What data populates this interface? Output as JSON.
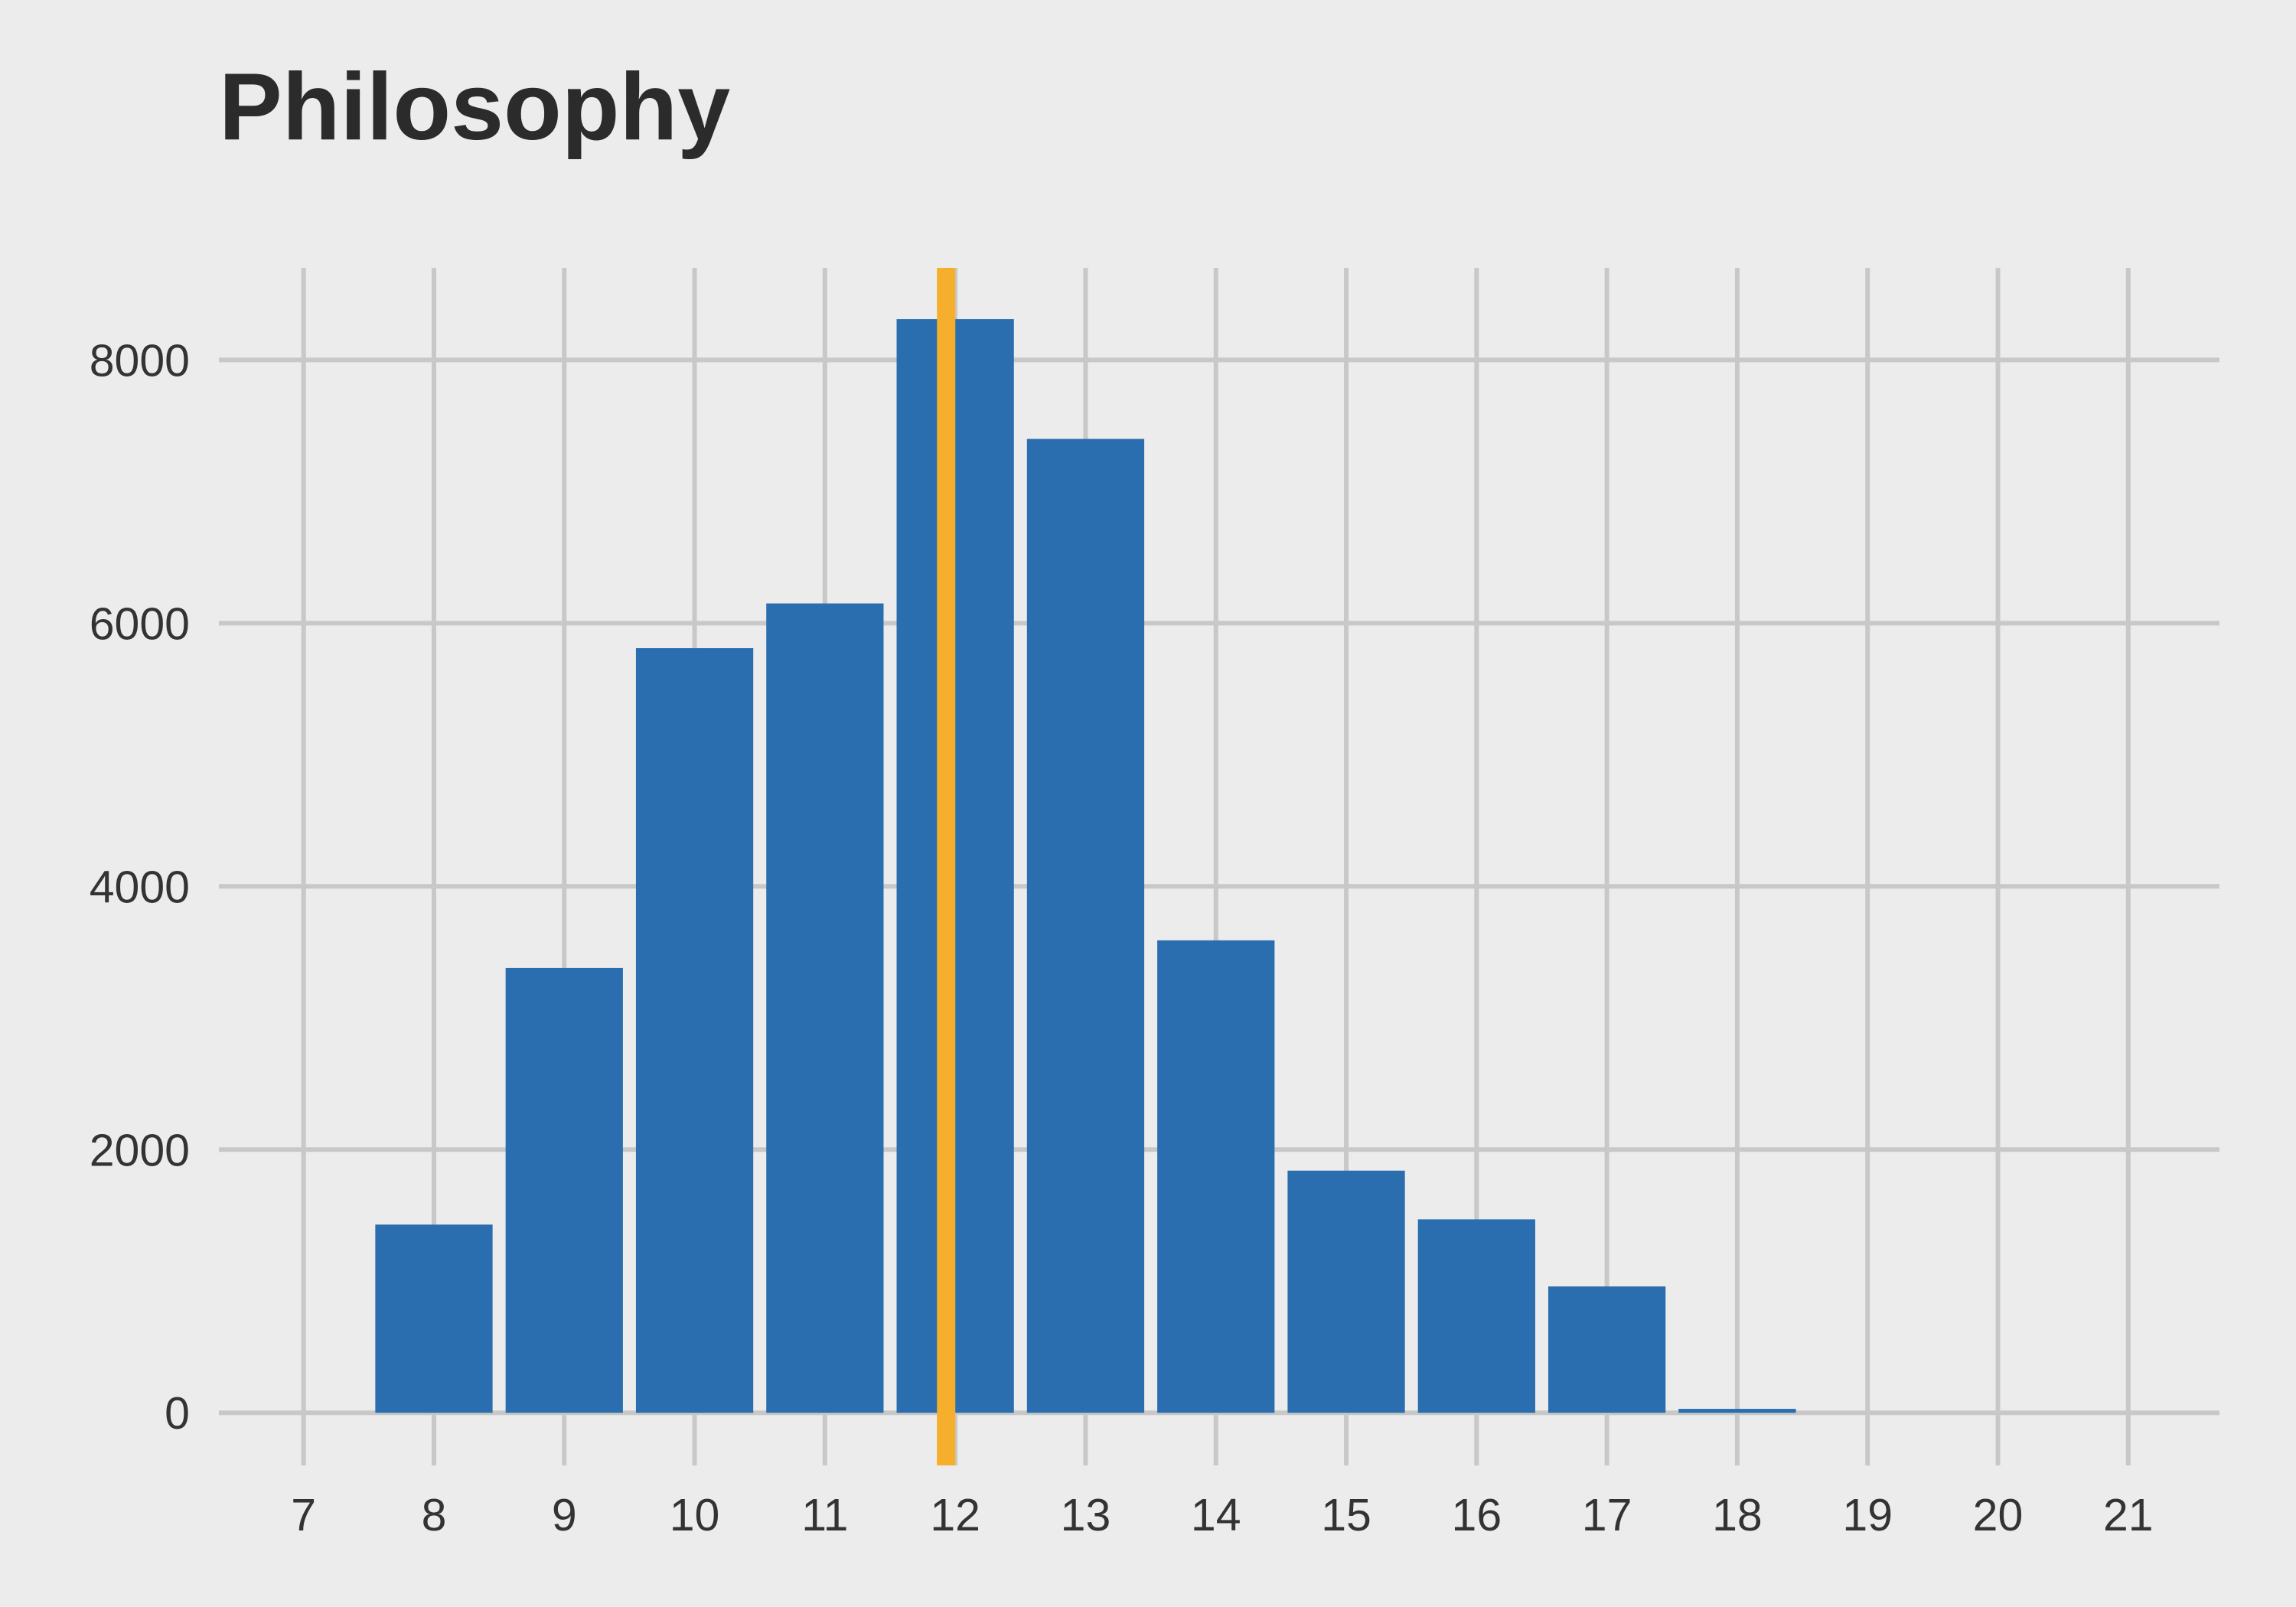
{
  "chart_data": {
    "type": "bar",
    "title": "Philosophy",
    "xlabel": "",
    "ylabel": "",
    "x": [
      8,
      9,
      10,
      11,
      12,
      13,
      14,
      15,
      16,
      17,
      18
    ],
    "values": [
      1430,
      3380,
      5810,
      6150,
      8310,
      7400,
      3590,
      1840,
      1470,
      960,
      30
    ],
    "xticks": [
      "7",
      "8",
      "9",
      "10",
      "11",
      "12",
      "13",
      "14",
      "15",
      "16",
      "17",
      "18",
      "19",
      "20",
      "21"
    ],
    "yticks": [
      "0",
      "2000",
      "4000",
      "6000",
      "8000"
    ],
    "xlim": [
      6.35,
      21.7
    ],
    "ylim": [
      -400,
      8700
    ],
    "grid": true,
    "reference_line": {
      "x": 11.93
    },
    "colors": {
      "bar": "#2a6eb0",
      "reference_line": "#f6ae2d",
      "grid": "#c8c8c8",
      "background": "#ececec",
      "text": "#333333"
    }
  }
}
